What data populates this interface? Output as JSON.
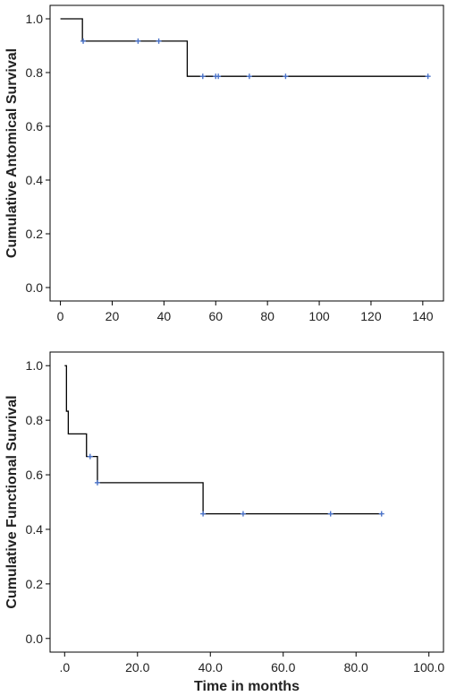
{
  "chart_data": [
    {
      "type": "line",
      "subtype": "kaplan-meier",
      "title": "",
      "xlabel": "",
      "ylabel": "Cumulative Antomical Survival",
      "xlim": [
        -4,
        148
      ],
      "ylim": [
        -0.05,
        1.05
      ],
      "xticks": [
        0,
        20,
        40,
        60,
        80,
        100,
        120,
        140
      ],
      "xtick_labels": [
        "0",
        "20",
        "40",
        "60",
        "80",
        "100",
        "120",
        "140"
      ],
      "yticks": [
        0.0,
        0.2,
        0.4,
        0.6,
        0.8,
        1.0
      ],
      "ytick_labels": [
        "0.0",
        "0.2",
        "0.4",
        "0.6",
        "0.8",
        "1.0"
      ],
      "grid": false,
      "series": [
        {
          "steps": [
            [
              0,
              1.0
            ],
            [
              8.5,
              0.917
            ],
            [
              49,
              0.786
            ],
            [
              142,
              0.786
            ]
          ],
          "censored": [
            [
              8.8,
              0.917
            ],
            [
              30,
              0.917
            ],
            [
              38,
              0.917
            ],
            [
              55,
              0.786
            ],
            [
              60,
              0.786
            ],
            [
              61,
              0.786
            ],
            [
              73,
              0.786
            ],
            [
              87,
              0.786
            ],
            [
              142,
              0.786
            ]
          ]
        }
      ]
    },
    {
      "type": "line",
      "subtype": "kaplan-meier",
      "title": "",
      "xlabel": "Time in months",
      "ylabel": "Cumulative Functional Survival",
      "xlim": [
        -4,
        104
      ],
      "ylim": [
        -0.05,
        1.05
      ],
      "xticks": [
        0,
        20,
        40,
        60,
        80,
        100
      ],
      "xtick_labels": [
        ".0",
        "20.0",
        "40.0",
        "60.0",
        "80.0",
        "100.0"
      ],
      "yticks": [
        0.0,
        0.2,
        0.4,
        0.6,
        0.8,
        1.0
      ],
      "ytick_labels": [
        "0.0",
        "0.2",
        "0.4",
        "0.6",
        "0.8",
        "1.0"
      ],
      "grid": false,
      "series": [
        {
          "steps": [
            [
              0,
              1.0
            ],
            [
              0.5,
              0.833
            ],
            [
              1,
              0.75
            ],
            [
              6,
              0.667
            ],
            [
              9,
              0.571
            ],
            [
              38,
              0.457
            ],
            [
              87,
              0.457
            ]
          ],
          "censored": [
            [
              7,
              0.667
            ],
            [
              9,
              0.571
            ],
            [
              38,
              0.457
            ],
            [
              49,
              0.457
            ],
            [
              73,
              0.457
            ],
            [
              87,
              0.457
            ]
          ]
        }
      ]
    }
  ],
  "colors": {
    "curve": "#000000",
    "censor_mark": "#4a72c8",
    "frame": "#000000"
  }
}
